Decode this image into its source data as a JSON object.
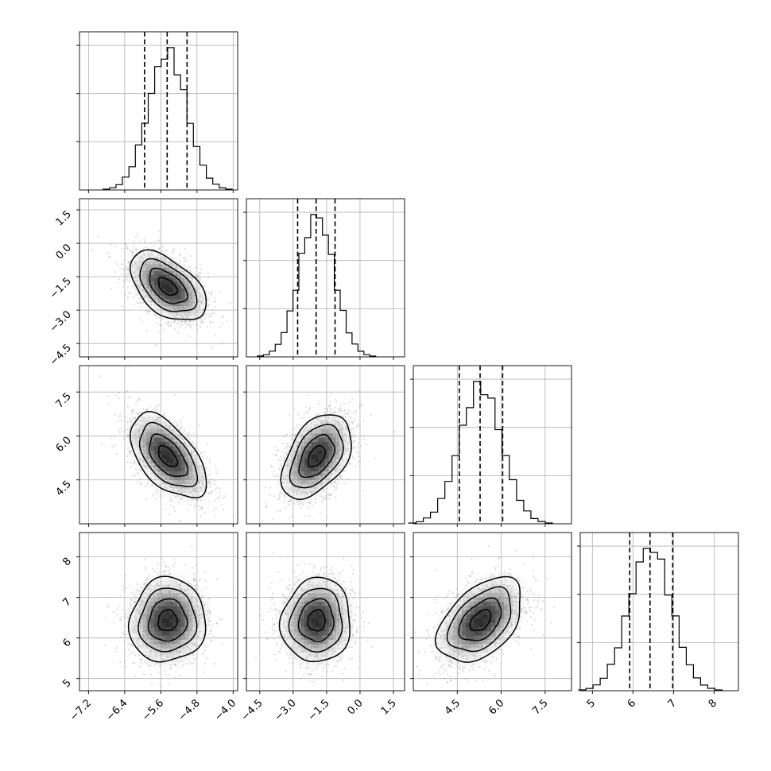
{
  "chart_data": {
    "type": "corner",
    "parameters": [
      {
        "index": 0,
        "axis_range": [
          -7.4,
          -3.9
        ],
        "ticks": [
          -7.2,
          -6.4,
          -5.6,
          -4.8,
          -4.0
        ],
        "tick_labels": [
          "−7.2",
          "−6.4",
          "−5.6",
          "−4.8",
          "−4.0"
        ],
        "mean": -5.45,
        "std": 0.42,
        "quantiles": [
          -5.96,
          -5.46,
          -5.02
        ]
      },
      {
        "index": 1,
        "axis_range": [
          -5.1,
          2.0
        ],
        "ticks": [
          -4.5,
          -3.0,
          -1.5,
          0.0,
          1.5
        ],
        "tick_labels": [
          "−4.5",
          "−3.0",
          "−1.5",
          "0.0",
          "1.5"
        ],
        "mean": -1.95,
        "std": 0.78,
        "quantiles": [
          -2.8,
          -1.97,
          -1.12
        ]
      },
      {
        "index": 2,
        "axis_range": [
          3.0,
          8.4
        ],
        "ticks": [
          4.5,
          6.0,
          7.5
        ],
        "tick_labels": [
          "4.5",
          "6.0",
          "7.5"
        ],
        "mean": 5.3,
        "std": 0.72,
        "quantiles": [
          4.57,
          5.28,
          6.05
        ]
      },
      {
        "index": 3,
        "axis_range": [
          4.7,
          8.6
        ],
        "ticks": [
          5,
          6,
          7,
          8
        ],
        "tick_labels": [
          "5",
          "6",
          "7",
          "8"
        ],
        "mean": 6.43,
        "std": 0.52,
        "quantiles": [
          5.92,
          6.42,
          6.98
        ]
      }
    ],
    "correlations": {
      "0-1": -0.5,
      "0-2": -0.55,
      "0-3": 0.05,
      "1-2": 0.45,
      "1-3": 0.05,
      "2-3": 0.45
    },
    "histogram": {
      "bins": 20,
      "style": "step"
    },
    "hist_y_ticks": 3,
    "contour_levels_sigma": [
      0.5,
      1.0,
      1.5,
      2.0
    ],
    "grid": true
  }
}
